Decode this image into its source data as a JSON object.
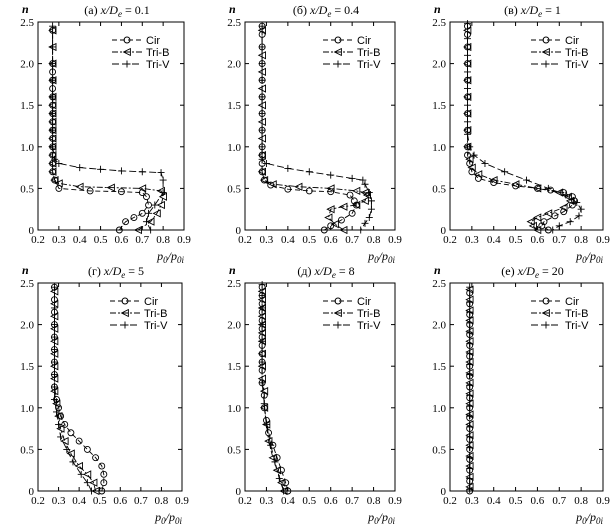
{
  "chart_data": [
    {
      "type": "line",
      "panel_label": "(а) x/D",
      "panel_label_sub": "e",
      "panel_label_value": " = 0.1",
      "xlabel": "p0/p0i",
      "ylabel": "n",
      "xlim": [
        0.2,
        0.9
      ],
      "ylim": [
        0,
        2.5
      ],
      "xticks": [
        "0.2",
        "0.3",
        "0.4",
        "0.5",
        "0.6",
        "0.7",
        "0.8",
        "0.9"
      ],
      "yticks": [
        "0",
        "0.5",
        "1.0",
        "1.5",
        "2.0",
        "2.5"
      ],
      "legend": "top-right",
      "series": [
        {
          "name": "Cir",
          "marker": "circle",
          "dash": "5,3",
          "x": [
            0.59,
            0.62,
            0.66,
            0.7,
            0.73,
            0.72,
            0.7,
            0.6,
            0.45,
            0.3,
            0.28,
            0.27,
            0.27,
            0.27,
            0.27,
            0.27,
            0.27,
            0.27,
            0.27,
            0.27,
            0.27,
            0.27,
            0.27,
            0.27,
            0.27,
            0.27
          ],
          "y": [
            0,
            0.1,
            0.15,
            0.2,
            0.3,
            0.4,
            0.45,
            0.46,
            0.47,
            0.5,
            0.6,
            0.7,
            0.8,
            0.9,
            1.0,
            1.1,
            1.2,
            1.3,
            1.4,
            1.5,
            1.6,
            1.7,
            1.8,
            1.9,
            2.0,
            2.4
          ]
        },
        {
          "name": "Tri-B",
          "marker": "triangle",
          "dash": "6,2,2,2",
          "x": [
            0.68,
            0.74,
            0.77,
            0.79,
            0.8,
            0.79,
            0.7,
            0.55,
            0.4,
            0.3,
            0.28,
            0.27,
            0.27,
            0.27,
            0.27,
            0.27,
            0.27,
            0.27,
            0.27,
            0.27,
            0.27,
            0.27,
            0.27,
            0.27,
            0.27
          ],
          "y": [
            0,
            0.1,
            0.2,
            0.3,
            0.4,
            0.47,
            0.5,
            0.51,
            0.52,
            0.56,
            0.6,
            0.7,
            0.8,
            0.9,
            1.0,
            1.1,
            1.2,
            1.3,
            1.4,
            1.5,
            1.6,
            1.8,
            2.0,
            2.2,
            2.4
          ]
        },
        {
          "name": "Tri-V",
          "marker": "plus",
          "dash": "7,3",
          "x": [
            0.27,
            0.27,
            0.27,
            0.27,
            0.27,
            0.27,
            0.27,
            0.27,
            0.28,
            0.3,
            0.4,
            0.5,
            0.6,
            0.7,
            0.79,
            0.8,
            0.8,
            0.76,
            0.73,
            0.72,
            0.74
          ],
          "y": [
            2.45,
            2.2,
            2.0,
            1.8,
            1.6,
            1.4,
            1.2,
            1.0,
            0.85,
            0.8,
            0.75,
            0.73,
            0.71,
            0.7,
            0.69,
            0.6,
            0.45,
            0.3,
            0.2,
            0.1,
            0
          ]
        }
      ]
    },
    {
      "type": "line",
      "panel_label": "(б) x/D",
      "panel_label_sub": "e",
      "panel_label_value": " = 0.4",
      "xlabel": "p0/p0i",
      "ylabel": "n",
      "xlim": [
        0.2,
        0.9
      ],
      "ylim": [
        0,
        2.5
      ],
      "xticks": [
        "0.2",
        "0.3",
        "0.4",
        "0.5",
        "0.6",
        "0.7",
        "0.8",
        "0.9"
      ],
      "yticks": [
        "0",
        "0.5",
        "1.0",
        "1.5",
        "2.0",
        "2.5"
      ],
      "legend": "top-right",
      "series": [
        {
          "name": "Cir",
          "marker": "circle",
          "dash": "5,3",
          "x": [
            0.57,
            0.6,
            0.65,
            0.7,
            0.72,
            0.71,
            0.69,
            0.6,
            0.5,
            0.4,
            0.32,
            0.29,
            0.28,
            0.28,
            0.28,
            0.28,
            0.28,
            0.28,
            0.28,
            0.28,
            0.28,
            0.28,
            0.28,
            0.28
          ],
          "y": [
            0,
            0.05,
            0.12,
            0.2,
            0.3,
            0.35,
            0.42,
            0.46,
            0.47,
            0.49,
            0.54,
            0.6,
            0.7,
            0.8,
            0.9,
            1.0,
            1.2,
            1.4,
            1.6,
            1.8,
            2.0,
            2.2,
            2.35,
            2.45
          ]
        },
        {
          "name": "Tri-B",
          "marker": "triangle",
          "dash": "6,2,2,2",
          "x": [
            0.66,
            0.62,
            0.59,
            0.6,
            0.66,
            0.72,
            0.76,
            0.77,
            0.76,
            0.72,
            0.6,
            0.45,
            0.33,
            0.29,
            0.28,
            0.28,
            0.28,
            0.28,
            0.28,
            0.28,
            0.28,
            0.28,
            0.28
          ],
          "y": [
            0,
            0.07,
            0.15,
            0.25,
            0.28,
            0.3,
            0.35,
            0.42,
            0.45,
            0.47,
            0.5,
            0.52,
            0.55,
            0.6,
            0.7,
            0.9,
            1.1,
            1.3,
            1.5,
            1.7,
            1.9,
            2.1,
            2.4
          ]
        },
        {
          "name": "Tri-V",
          "marker": "plus",
          "dash": "7,3",
          "x": [
            0.28,
            0.28,
            0.28,
            0.28,
            0.28,
            0.28,
            0.28,
            0.28,
            0.28,
            0.3,
            0.4,
            0.5,
            0.6,
            0.7,
            0.75,
            0.76,
            0.78,
            0.79,
            0.79,
            0.78,
            0.76,
            0.74
          ],
          "y": [
            2.45,
            2.2,
            2.0,
            1.8,
            1.6,
            1.4,
            1.2,
            1.0,
            0.85,
            0.8,
            0.74,
            0.7,
            0.66,
            0.62,
            0.6,
            0.55,
            0.45,
            0.35,
            0.25,
            0.15,
            0.08,
            0
          ]
        }
      ]
    },
    {
      "type": "line",
      "panel_label": "(в) x/D",
      "panel_label_sub": "e",
      "panel_label_value": " = 1",
      "xlabel": "p0/p0i",
      "ylabel": "n",
      "xlim": [
        0.2,
        0.9
      ],
      "ylim": [
        0,
        2.5
      ],
      "xticks": [
        "0.2",
        "0.3",
        "0.4",
        "0.5",
        "0.6",
        "0.7",
        "0.8",
        "0.9"
      ],
      "yticks": [
        "0",
        "0.5",
        "1.0",
        "1.5",
        "2.0",
        "2.5"
      ],
      "legend": "top-right",
      "series": [
        {
          "name": "Cir",
          "marker": "circle",
          "dash": "5,3",
          "x": [
            0.65,
            0.62,
            0.63,
            0.68,
            0.72,
            0.76,
            0.77,
            0.76,
            0.72,
            0.66,
            0.6,
            0.5,
            0.4,
            0.33,
            0.3,
            0.29,
            0.28,
            0.28,
            0.28,
            0.28,
            0.28,
            0.28,
            0.28,
            0.28,
            0.28,
            0.28
          ],
          "y": [
            0,
            0.05,
            0.1,
            0.17,
            0.22,
            0.3,
            0.35,
            0.4,
            0.45,
            0.48,
            0.5,
            0.53,
            0.57,
            0.62,
            0.7,
            0.8,
            0.9,
            1.0,
            1.2,
            1.4,
            1.6,
            1.8,
            2.0,
            2.2,
            2.35,
            2.45
          ]
        },
        {
          "name": "Tri-B",
          "marker": "triangle",
          "dash": "6,2,2,2",
          "x": [
            0.6,
            0.58,
            0.57,
            0.6,
            0.65,
            0.72,
            0.75,
            0.74,
            0.7,
            0.6,
            0.5,
            0.4,
            0.33,
            0.3,
            0.29,
            0.28,
            0.28,
            0.28,
            0.28,
            0.28,
            0.28,
            0.28,
            0.28
          ],
          "y": [
            0,
            0.05,
            0.1,
            0.15,
            0.2,
            0.27,
            0.35,
            0.4,
            0.45,
            0.5,
            0.55,
            0.6,
            0.67,
            0.75,
            0.85,
            1.0,
            1.2,
            1.4,
            1.6,
            1.8,
            2.0,
            2.2,
            2.4
          ]
        },
        {
          "name": "Tri-V",
          "marker": "plus",
          "dash": "7,3",
          "x": [
            0.28,
            0.28,
            0.28,
            0.28,
            0.28,
            0.28,
            0.28,
            0.28,
            0.29,
            0.31,
            0.36,
            0.45,
            0.55,
            0.65,
            0.73,
            0.78,
            0.8,
            0.79,
            0.75,
            0.7,
            0.67
          ],
          "y": [
            2.48,
            2.3,
            2.1,
            1.9,
            1.7,
            1.5,
            1.3,
            1.15,
            1.0,
            0.9,
            0.8,
            0.7,
            0.6,
            0.5,
            0.42,
            0.33,
            0.25,
            0.17,
            0.1,
            0.05,
            0
          ]
        }
      ]
    },
    {
      "type": "line",
      "panel_label": "(г) x/D",
      "panel_label_sub": "e",
      "panel_label_value": " = 5",
      "xlabel": "p0/p0i",
      "ylabel": "n",
      "xlim": [
        0.2,
        0.9
      ],
      "ylim": [
        0,
        2.5
      ],
      "xticks": [
        "0.2",
        "0.3",
        "0.4",
        "0.5",
        "0.6",
        "0.7",
        "0.8",
        "0.9"
      ],
      "yticks": [
        "0",
        "0.5",
        "1.0",
        "1.5",
        "2.0",
        "2.5"
      ],
      "legend": "top-right",
      "series": [
        {
          "name": "Cir",
          "marker": "circle",
          "dash": "5,3",
          "x": [
            0.51,
            0.52,
            0.52,
            0.51,
            0.48,
            0.44,
            0.4,
            0.36,
            0.33,
            0.31,
            0.3,
            0.29,
            0.28,
            0.28,
            0.28,
            0.28,
            0.28,
            0.28,
            0.28,
            0.28,
            0.28
          ],
          "y": [
            0,
            0.1,
            0.2,
            0.3,
            0.4,
            0.5,
            0.6,
            0.7,
            0.8,
            0.9,
            1.0,
            1.1,
            1.25,
            1.4,
            1.55,
            1.7,
            1.85,
            2.0,
            2.15,
            2.3,
            2.45
          ]
        },
        {
          "name": "Tri-B",
          "marker": "triangle",
          "dash": "6,2,2,2",
          "x": [
            0.48,
            0.47,
            0.44,
            0.4,
            0.36,
            0.33,
            0.31,
            0.3,
            0.29,
            0.28,
            0.28,
            0.28,
            0.28,
            0.28,
            0.28,
            0.28,
            0.28,
            0.28
          ],
          "y": [
            0,
            0.1,
            0.2,
            0.3,
            0.45,
            0.6,
            0.75,
            0.9,
            1.05,
            1.2,
            1.35,
            1.5,
            1.65,
            1.8,
            1.95,
            2.1,
            2.25,
            2.4
          ]
        },
        {
          "name": "Tri-V",
          "marker": "plus",
          "dash": "7,3",
          "x": [
            0.46,
            0.44,
            0.41,
            0.37,
            0.34,
            0.31,
            0.3,
            0.29,
            0.28,
            0.28,
            0.28,
            0.28,
            0.28,
            0.28,
            0.28,
            0.28,
            0.28
          ],
          "y": [
            0,
            0.1,
            0.2,
            0.35,
            0.5,
            0.65,
            0.8,
            0.95,
            1.1,
            1.25,
            1.4,
            1.55,
            1.7,
            1.85,
            2.0,
            2.2,
            2.45
          ]
        }
      ]
    },
    {
      "type": "line",
      "panel_label": "(д) x/D",
      "panel_label_sub": "e",
      "panel_label_value": " = 8",
      "xlabel": "p0/p0i",
      "ylabel": "n",
      "xlim": [
        0.2,
        0.9
      ],
      "ylim": [
        0,
        2.5
      ],
      "xticks": [
        "0.2",
        "0.3",
        "0.4",
        "0.5",
        "0.6",
        "0.7",
        "0.8",
        "0.9"
      ],
      "yticks": [
        "0",
        "0.5",
        "1.0",
        "1.5",
        "2.0",
        "2.5"
      ],
      "legend": "top-right",
      "series": [
        {
          "name": "Cir",
          "marker": "circle",
          "dash": "5,3",
          "x": [
            0.4,
            0.39,
            0.37,
            0.35,
            0.33,
            0.31,
            0.3,
            0.29,
            0.29,
            0.28,
            0.28,
            0.28,
            0.28,
            0.28,
            0.28,
            0.28,
            0.28,
            0.28,
            0.28,
            0.28,
            0.28
          ],
          "y": [
            0,
            0.1,
            0.25,
            0.4,
            0.55,
            0.7,
            0.85,
            1.0,
            1.15,
            1.3,
            1.45,
            1.55,
            1.65,
            1.75,
            1.85,
            1.95,
            2.05,
            2.15,
            2.25,
            2.35,
            2.45
          ]
        },
        {
          "name": "Tri-B",
          "marker": "triangle",
          "dash": "6,2,2,2",
          "x": [
            0.38,
            0.37,
            0.35,
            0.33,
            0.31,
            0.3,
            0.29,
            0.29,
            0.28,
            0.28,
            0.28,
            0.28,
            0.28,
            0.28,
            0.28,
            0.28,
            0.28,
            0.28
          ],
          "y": [
            0,
            0.1,
            0.25,
            0.4,
            0.6,
            0.8,
            1.0,
            1.2,
            1.35,
            1.5,
            1.65,
            1.8,
            1.9,
            2.0,
            2.1,
            2.2,
            2.3,
            2.4
          ]
        },
        {
          "name": "Tri-V",
          "marker": "plus",
          "dash": "7,3",
          "x": [
            0.38,
            0.36,
            0.34,
            0.32,
            0.3,
            0.29,
            0.28,
            0.28,
            0.28,
            0.28,
            0.28,
            0.28,
            0.28
          ],
          "y": [
            0,
            0.15,
            0.35,
            0.55,
            0.8,
            1.05,
            1.3,
            1.55,
            1.8,
            2.0,
            2.2,
            2.35,
            2.48
          ]
        }
      ]
    },
    {
      "type": "line",
      "panel_label": "(е) x/D",
      "panel_label_sub": "e",
      "panel_label_value": " = 20",
      "xlabel": "p0/p0i",
      "ylabel": "n",
      "xlim": [
        0.2,
        0.9
      ],
      "ylim": [
        0,
        2.5
      ],
      "xticks": [
        "0.2",
        "0.3",
        "0.4",
        "0.5",
        "0.6",
        "0.7",
        "0.8",
        "0.9"
      ],
      "yticks": [
        "0",
        "0.5",
        "1.0",
        "1.5",
        "2.0",
        "2.5"
      ],
      "legend": "top-right",
      "series": [
        {
          "name": "Cir",
          "marker": "circle",
          "dash": "5,3",
          "x": [
            0.29,
            0.29,
            0.29,
            0.29,
            0.29,
            0.29,
            0.29,
            0.29,
            0.29,
            0.29,
            0.29,
            0.29,
            0.29,
            0.29,
            0.29,
            0.29,
            0.29,
            0.29,
            0.29,
            0.29
          ],
          "y": [
            0,
            0.12,
            0.25,
            0.38,
            0.5,
            0.62,
            0.75,
            0.88,
            1.0,
            1.12,
            1.25,
            1.38,
            1.5,
            1.62,
            1.75,
            1.88,
            2.0,
            2.12,
            2.25,
            2.38
          ]
        },
        {
          "name": "Tri-B",
          "marker": "triangle",
          "dash": "6,2,2,2",
          "x": [
            0.29,
            0.29,
            0.29,
            0.29,
            0.29,
            0.29,
            0.29,
            0.29,
            0.29,
            0.29,
            0.29,
            0.29,
            0.29,
            0.29,
            0.29,
            0.29,
            0.29,
            0.29,
            0.29,
            0.29
          ],
          "y": [
            0.05,
            0.17,
            0.3,
            0.42,
            0.55,
            0.67,
            0.8,
            0.92,
            1.05,
            1.17,
            1.3,
            1.42,
            1.55,
            1.67,
            1.8,
            1.92,
            2.05,
            2.17,
            2.3,
            2.42
          ]
        },
        {
          "name": "Tri-V",
          "marker": "plus",
          "dash": "7,3",
          "x": [
            0.29,
            0.29,
            0.29,
            0.29,
            0.29,
            0.29,
            0.29,
            0.29,
            0.29,
            0.29,
            0.29,
            0.29,
            0.29,
            0.29,
            0.29,
            0.29,
            0.29,
            0.29,
            0.29,
            0.29
          ],
          "y": [
            0.02,
            0.15,
            0.27,
            0.4,
            0.52,
            0.65,
            0.77,
            0.9,
            1.02,
            1.15,
            1.27,
            1.4,
            1.52,
            1.65,
            1.77,
            1.9,
            2.02,
            2.15,
            2.27,
            2.45
          ]
        }
      ]
    }
  ]
}
